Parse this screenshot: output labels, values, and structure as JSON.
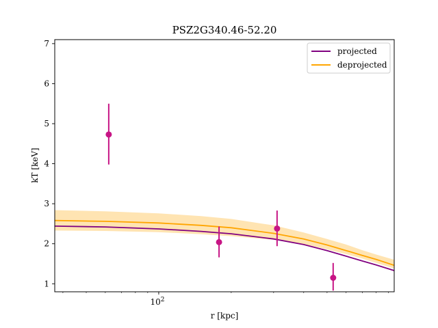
{
  "chart_data": {
    "type": "line",
    "title": "PSZ2G340.46-52.20",
    "xlabel": "r [kpc]",
    "ylabel": "kT [keV]",
    "xscale": "log",
    "xlim": [
      37,
      950
    ],
    "ylim": [
      0.8,
      7.1
    ],
    "grid": false,
    "legend_position": "top-right",
    "x_tick_labels": [
      {
        "value": 100,
        "label": "10",
        "exp": "2"
      }
    ],
    "y_ticks": [
      1,
      2,
      3,
      4,
      5,
      6,
      7
    ],
    "colors": {
      "projected": "#800080",
      "deprojected": "#ffa500",
      "band": "#ffa500",
      "points": "#c71585"
    },
    "series": [
      {
        "name": "projected",
        "color": "#800080",
        "x": [
          37,
          60,
          100,
          150,
          200,
          300,
          400,
          500,
          600,
          700,
          800,
          950
        ],
        "y": [
          2.44,
          2.42,
          2.37,
          2.31,
          2.25,
          2.12,
          1.98,
          1.83,
          1.69,
          1.57,
          1.47,
          1.33
        ]
      },
      {
        "name": "deprojected",
        "color": "#ffa500",
        "x": [
          37,
          60,
          100,
          150,
          200,
          300,
          400,
          500,
          600,
          700,
          800,
          950
        ],
        "y": [
          2.58,
          2.56,
          2.52,
          2.46,
          2.4,
          2.26,
          2.12,
          1.97,
          1.83,
          1.71,
          1.61,
          1.46
        ],
        "band_lower": [
          2.33,
          2.32,
          2.29,
          2.24,
          2.19,
          2.1,
          1.99,
          1.86,
          1.74,
          1.63,
          1.52,
          1.38
        ],
        "band_upper": [
          2.84,
          2.81,
          2.76,
          2.69,
          2.62,
          2.46,
          2.28,
          2.12,
          1.98,
          1.84,
          1.73,
          1.6
        ]
      }
    ],
    "data_points": [
      {
        "x": 62,
        "y": 4.73,
        "yerr_low": 0.75,
        "yerr_high": 0.77
      },
      {
        "x": 178,
        "y": 2.04,
        "yerr_low": 0.38,
        "yerr_high": 0.39
      },
      {
        "x": 310,
        "y": 2.38,
        "yerr_low": 0.44,
        "yerr_high": 0.45
      },
      {
        "x": 530,
        "y": 1.15,
        "yerr_low": 0.32,
        "yerr_high": 0.37
      }
    ]
  }
}
